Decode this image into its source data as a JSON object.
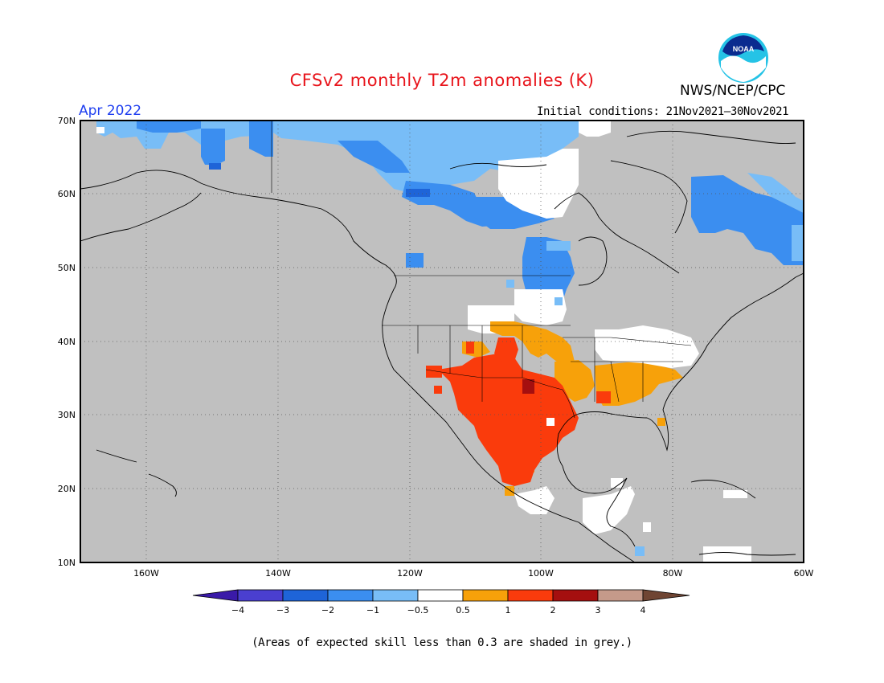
{
  "title": "CFSv2 monthly T2m anomalies (K)",
  "month": "Apr 2022",
  "initial_conditions": "Initial conditions: 21Nov2021–30Nov2021",
  "agency": "NWS/NCEP/CPC",
  "logo_text": "NOAA",
  "footnote": "(Areas of expected skill less than 0.3 are shaded in grey.)",
  "lat_labels": [
    "70N",
    "60N",
    "50N",
    "40N",
    "30N",
    "20N",
    "10N"
  ],
  "lon_labels": [
    "160W",
    "140W",
    "120W",
    "100W",
    "80W",
    "60W"
  ],
  "colorbar": {
    "labels": [
      "−4",
      "−3",
      "−2",
      "−1",
      "−0.5",
      "0.5",
      "1",
      "2",
      "3",
      "4"
    ],
    "colors": [
      "#3a1aa8",
      "#4a3fd0",
      "#1e64d8",
      "#3b8ef0",
      "#78bdf7",
      "#ffffff",
      "#f7a10a",
      "#fa3b0c",
      "#a50f0f",
      "#c59a8a",
      "#6f4533"
    ]
  },
  "colors": {
    "skill_grey": "#c0c0c0",
    "ocean": "#c0c0c0",
    "title_red": "#e8141b",
    "month_blue": "#1f3ff0"
  }
}
